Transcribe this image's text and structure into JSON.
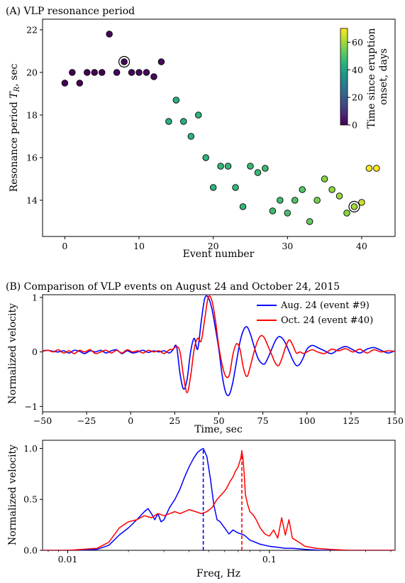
{
  "chart_data": [
    {
      "type": "scatter",
      "title": "(A) VLP resonance period",
      "xlabel": "Event number",
      "ylabel": "Resonance period T_R, sec",
      "ylabel_main": "Resonance period ",
      "ylabel_var": "T",
      "ylabel_sub": "R",
      "ylabel_unit": ", sec",
      "xlim": [
        -3,
        44.5
      ],
      "ylim": [
        12.3,
        22.5
      ],
      "xticks": [
        0,
        10,
        20,
        30,
        40
      ],
      "yticks": [
        14,
        16,
        18,
        20,
        22
      ],
      "colorbar": {
        "label_line1": "Time since eruption",
        "label_line2": "onset, days",
        "range": [
          0,
          70
        ],
        "ticks": [
          0,
          20,
          40,
          60
        ],
        "colormap": "viridis"
      },
      "circled_events": [
        8,
        39
      ],
      "points": [
        {
          "x": 0,
          "y": 19.5,
          "c": 0
        },
        {
          "x": 1,
          "y": 20.0,
          "c": 0
        },
        {
          "x": 2,
          "y": 19.5,
          "c": 0
        },
        {
          "x": 3,
          "y": 20.0,
          "c": 0
        },
        {
          "x": 4,
          "y": 20.0,
          "c": 0
        },
        {
          "x": 5,
          "y": 20.0,
          "c": 0
        },
        {
          "x": 6,
          "y": 21.8,
          "c": 1
        },
        {
          "x": 7,
          "y": 20.0,
          "c": 1
        },
        {
          "x": 8,
          "y": 20.5,
          "c": 1
        },
        {
          "x": 9,
          "y": 20.0,
          "c": 1
        },
        {
          "x": 10,
          "y": 20.0,
          "c": 1
        },
        {
          "x": 11,
          "y": 20.0,
          "c": 1
        },
        {
          "x": 12,
          "y": 19.8,
          "c": 2
        },
        {
          "x": 13,
          "y": 20.5,
          "c": 2
        },
        {
          "x": 14,
          "y": 17.7,
          "c": 44
        },
        {
          "x": 15,
          "y": 18.7,
          "c": 44
        },
        {
          "x": 16,
          "y": 17.7,
          "c": 44
        },
        {
          "x": 17,
          "y": 17.0,
          "c": 45
        },
        {
          "x": 18,
          "y": 18.0,
          "c": 45
        },
        {
          "x": 19,
          "y": 16.0,
          "c": 45
        },
        {
          "x": 20,
          "y": 14.6,
          "c": 45
        },
        {
          "x": 21,
          "y": 15.6,
          "c": 46
        },
        {
          "x": 22,
          "y": 15.6,
          "c": 46
        },
        {
          "x": 23,
          "y": 14.6,
          "c": 46
        },
        {
          "x": 24,
          "y": 13.7,
          "c": 46
        },
        {
          "x": 25,
          "y": 15.6,
          "c": 47
        },
        {
          "x": 26,
          "y": 15.3,
          "c": 47
        },
        {
          "x": 27,
          "y": 15.5,
          "c": 47
        },
        {
          "x": 28,
          "y": 13.5,
          "c": 48
        },
        {
          "x": 29,
          "y": 14.0,
          "c": 48
        },
        {
          "x": 30,
          "y": 13.4,
          "c": 49
        },
        {
          "x": 31,
          "y": 14.0,
          "c": 50
        },
        {
          "x": 32,
          "y": 14.5,
          "c": 51
        },
        {
          "x": 33,
          "y": 13.0,
          "c": 53
        },
        {
          "x": 34,
          "y": 14.0,
          "c": 55
        },
        {
          "x": 35,
          "y": 15.0,
          "c": 57
        },
        {
          "x": 36,
          "y": 14.5,
          "c": 58
        },
        {
          "x": 37,
          "y": 14.2,
          "c": 59
        },
        {
          "x": 38,
          "y": 13.4,
          "c": 57
        },
        {
          "x": 39,
          "y": 13.7,
          "c": 60
        },
        {
          "x": 40,
          "y": 13.9,
          "c": 64
        },
        {
          "x": 41,
          "y": 15.5,
          "c": 70
        },
        {
          "x": 42,
          "y": 15.5,
          "c": 70
        }
      ]
    },
    {
      "type": "line",
      "title": "(B) Comparison of VLP events on August 24 and October 24, 2015",
      "xlabel": "Time, sec",
      "ylabel": "Normalized velocity",
      "xlim": [
        -50,
        150
      ],
      "ylim": [
        -1.1,
        1.05
      ],
      "xticks": [
        -50,
        -25,
        0,
        25,
        50,
        75,
        100,
        125,
        150
      ],
      "yticks": [
        -1,
        0,
        1
      ],
      "legend_position": "top-right",
      "series": [
        {
          "name": "Aug. 24 (event #9)",
          "color": "#0000ff",
          "x": [
            -50,
            -47,
            -44,
            -41,
            -38,
            -35,
            -32,
            -29,
            -26,
            -23,
            -20,
            -17,
            -14,
            -11,
            -8,
            -5,
            -2,
            1,
            4,
            7,
            10,
            13,
            16,
            19,
            22,
            24,
            26,
            28,
            30,
            32,
            34,
            36,
            38,
            40,
            42,
            44,
            46,
            48,
            50,
            52,
            54,
            56,
            58,
            60,
            62,
            64,
            66,
            68,
            70,
            72,
            74,
            76,
            78,
            80,
            82,
            84,
            86,
            88,
            90,
            92,
            94,
            96,
            98,
            100,
            103,
            106,
            110,
            114,
            118,
            122,
            126,
            130,
            134,
            138,
            142,
            146,
            150
          ],
          "y": [
            0.02,
            0.03,
            0.01,
            0.0,
            0.02,
            -0.02,
            0.03,
            0.01,
            -0.03,
            0.02,
            0.0,
            0.03,
            -0.02,
            0.02,
            0.04,
            -0.03,
            0.02,
            -0.02,
            0.0,
            0.03,
            -0.01,
            0.02,
            0.0,
            0.02,
            -0.02,
            0.04,
            0.1,
            -0.4,
            -0.68,
            -0.5,
            0.0,
            0.25,
            0.05,
            0.55,
            0.98,
            1.0,
            0.8,
            0.45,
            0.05,
            -0.45,
            -0.75,
            -0.78,
            -0.55,
            -0.18,
            0.18,
            0.4,
            0.46,
            0.32,
            0.1,
            -0.1,
            -0.2,
            -0.22,
            -0.1,
            0.05,
            0.2,
            0.28,
            0.25,
            0.15,
            0.0,
            -0.15,
            -0.25,
            -0.22,
            -0.1,
            0.05,
            0.12,
            0.08,
            0.02,
            -0.03,
            0.05,
            0.1,
            0.04,
            -0.02,
            0.05,
            0.08,
            0.03,
            -0.02,
            0.02
          ]
        },
        {
          "name": "Oct. 24 (event #40)",
          "color": "#ff0000",
          "x": [
            -50,
            -47,
            -44,
            -41,
            -38,
            -35,
            -32,
            -29,
            -26,
            -23,
            -20,
            -17,
            -14,
            -11,
            -8,
            -5,
            -2,
            1,
            4,
            7,
            10,
            13,
            16,
            19,
            22,
            24,
            26,
            28,
            30,
            32,
            34,
            36,
            38,
            40,
            42,
            44,
            46,
            48,
            50,
            52,
            54,
            56,
            58,
            60,
            62,
            64,
            66,
            68,
            70,
            72,
            74,
            76,
            78,
            80,
            82,
            84,
            86,
            88,
            90,
            92,
            94,
            96,
            98,
            100,
            103,
            106,
            110,
            114,
            118,
            122,
            126,
            130,
            134,
            138,
            142,
            146,
            150
          ],
          "y": [
            0.01,
            0.03,
            0.0,
            0.04,
            -0.02,
            0.02,
            -0.03,
            0.03,
            0.0,
            0.04,
            -0.03,
            0.0,
            0.03,
            -0.02,
            0.03,
            -0.02,
            0.04,
            0.0,
            0.02,
            -0.02,
            0.03,
            0.0,
            0.02,
            -0.03,
            0.04,
            0.05,
            0.1,
            0.0,
            -0.45,
            -0.75,
            -0.45,
            0.05,
            0.25,
            0.2,
            0.6,
            1.0,
            0.95,
            0.6,
            0.1,
            -0.25,
            -0.45,
            -0.42,
            -0.05,
            0.15,
            0.05,
            -0.3,
            -0.45,
            -0.25,
            0.0,
            0.2,
            0.3,
            0.25,
            0.1,
            -0.05,
            -0.2,
            -0.25,
            -0.1,
            0.1,
            0.22,
            0.12,
            -0.02,
            0.0,
            -0.03,
            0.0,
            0.04,
            0.0,
            -0.03,
            0.05,
            0.02,
            0.06,
            0.0,
            0.05,
            -0.02,
            0.04,
            0.0,
            0.02,
            0.01
          ]
        }
      ]
    },
    {
      "type": "line",
      "title": "",
      "xlabel": "Freq, Hz",
      "ylabel": "Normalized velocity",
      "xscale": "log",
      "xlim": [
        0.0075,
        0.42
      ],
      "ylim": [
        0,
        1.08
      ],
      "xticks": [
        0.01,
        0.1
      ],
      "xtick_labels": [
        "0.01",
        "0.1"
      ],
      "yticks": [
        0,
        0.5,
        1
      ],
      "ytick_labels": [
        "0.0",
        "0.5",
        "1.0"
      ],
      "peak_markers": [
        {
          "x": 0.047,
          "color": "#0000ff",
          "style": "dashed"
        },
        {
          "x": 0.073,
          "color": "#ff0000",
          "style": "dashed"
        }
      ],
      "series": [
        {
          "name": "Aug. 24 (event #9)",
          "color": "#0000ff",
          "x": [
            0.0075,
            0.01,
            0.014,
            0.016,
            0.018,
            0.02,
            0.022,
            0.024,
            0.025,
            0.026,
            0.027,
            0.028,
            0.029,
            0.03,
            0.032,
            0.034,
            0.036,
            0.038,
            0.04,
            0.042,
            0.044,
            0.046,
            0.047,
            0.049,
            0.051,
            0.053,
            0.055,
            0.057,
            0.06,
            0.063,
            0.066,
            0.07,
            0.075,
            0.08,
            0.085,
            0.09,
            0.1,
            0.11,
            0.12,
            0.13,
            0.15,
            0.18,
            0.25,
            0.42
          ],
          "y": [
            0.0,
            0.0,
            0.01,
            0.05,
            0.15,
            0.22,
            0.3,
            0.38,
            0.41,
            0.36,
            0.3,
            0.36,
            0.28,
            0.3,
            0.42,
            0.5,
            0.6,
            0.72,
            0.82,
            0.9,
            0.96,
            0.99,
            1.0,
            0.92,
            0.7,
            0.45,
            0.3,
            0.28,
            0.22,
            0.16,
            0.2,
            0.17,
            0.15,
            0.1,
            0.08,
            0.06,
            0.04,
            0.03,
            0.02,
            0.02,
            0.01,
            0.0,
            0.0,
            0.0
          ]
        },
        {
          "name": "Oct. 24 (event #40)",
          "color": "#ff0000",
          "x": [
            0.0075,
            0.01,
            0.014,
            0.016,
            0.018,
            0.02,
            0.022,
            0.024,
            0.026,
            0.028,
            0.03,
            0.032,
            0.034,
            0.036,
            0.038,
            0.04,
            0.043,
            0.046,
            0.049,
            0.052,
            0.055,
            0.058,
            0.061,
            0.064,
            0.066,
            0.068,
            0.07,
            0.071,
            0.072,
            0.073,
            0.074,
            0.075,
            0.076,
            0.078,
            0.08,
            0.083,
            0.086,
            0.09,
            0.095,
            0.1,
            0.105,
            0.11,
            0.115,
            0.12,
            0.125,
            0.13,
            0.14,
            0.15,
            0.17,
            0.2,
            0.25,
            0.42
          ],
          "y": [
            0.0,
            0.0,
            0.02,
            0.08,
            0.22,
            0.28,
            0.3,
            0.34,
            0.32,
            0.36,
            0.34,
            0.36,
            0.38,
            0.36,
            0.38,
            0.4,
            0.38,
            0.36,
            0.38,
            0.42,
            0.5,
            0.55,
            0.6,
            0.68,
            0.72,
            0.78,
            0.82,
            0.86,
            0.9,
            0.97,
            0.9,
            0.75,
            0.55,
            0.45,
            0.38,
            0.35,
            0.3,
            0.22,
            0.16,
            0.14,
            0.2,
            0.12,
            0.32,
            0.15,
            0.3,
            0.12,
            0.08,
            0.04,
            0.02,
            0.01,
            0.0,
            0.0
          ]
        }
      ]
    }
  ]
}
